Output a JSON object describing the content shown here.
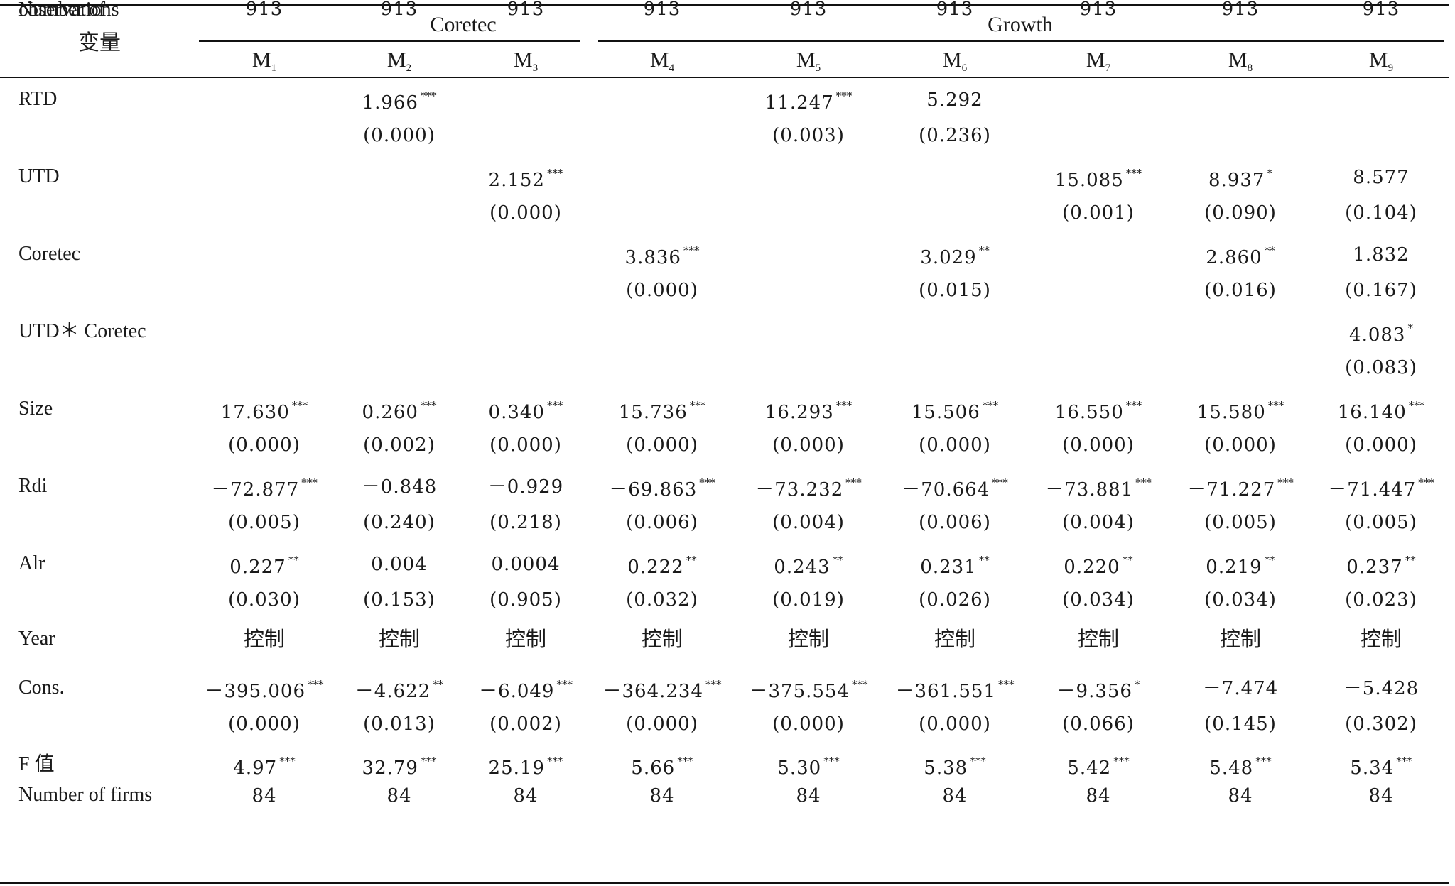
{
  "table": {
    "var_header": "变量",
    "groups": [
      "Coretec",
      "Growth"
    ],
    "models": [
      {
        "main": "M",
        "sub": "1"
      },
      {
        "main": "M",
        "sub": "2"
      },
      {
        "main": "M",
        "sub": "3"
      },
      {
        "main": "M",
        "sub": "4"
      },
      {
        "main": "M",
        "sub": "5"
      },
      {
        "main": "M",
        "sub": "6"
      },
      {
        "main": "M",
        "sub": "7"
      },
      {
        "main": "M",
        "sub": "8"
      },
      {
        "main": "M",
        "sub": "9"
      }
    ],
    "rows": [
      {
        "label": "RTD",
        "type": "pair",
        "coef": [
          "",
          "1.966",
          "",
          "",
          "11.247",
          "5.292",
          "",
          "",
          ""
        ],
        "stars": [
          "",
          "***",
          "",
          "",
          "***",
          "",
          "",
          "",
          ""
        ],
        "p": [
          "",
          "(0.000)",
          "",
          "",
          "(0.003)",
          "(0.236)",
          "",
          "",
          ""
        ]
      },
      {
        "label": "UTD",
        "type": "pair",
        "coef": [
          "",
          "",
          "2.152",
          "",
          "",
          "",
          "15.085",
          "8.937",
          "8.577"
        ],
        "stars": [
          "",
          "",
          "***",
          "",
          "",
          "",
          "***",
          "*",
          ""
        ],
        "p": [
          "",
          "",
          "(0.000)",
          "",
          "",
          "",
          "(0.001)",
          "(0.090)",
          "(0.104)"
        ]
      },
      {
        "label": "Coretec",
        "type": "pair",
        "coef": [
          "",
          "",
          "",
          "3.836",
          "",
          "3.029",
          "",
          "2.860",
          "1.832"
        ],
        "stars": [
          "",
          "",
          "",
          "***",
          "",
          "**",
          "",
          "**",
          ""
        ],
        "p": [
          "",
          "",
          "",
          "(0.000)",
          "",
          "(0.015)",
          "",
          "(0.016)",
          "(0.167)"
        ]
      },
      {
        "label": "UTD＊ Coretec",
        "type": "pair",
        "coef": [
          "",
          "",
          "",
          "",
          "",
          "",
          "",
          "",
          "4.083"
        ],
        "stars": [
          "",
          "",
          "",
          "",
          "",
          "",
          "",
          "",
          "*"
        ],
        "p": [
          "",
          "",
          "",
          "",
          "",
          "",
          "",
          "",
          "(0.083)"
        ]
      },
      {
        "label": "Size",
        "type": "pair",
        "coef": [
          "17.630",
          "0.260",
          "0.340",
          "15.736",
          "16.293",
          "15.506",
          "16.550",
          "15.580",
          "16.140"
        ],
        "stars": [
          "***",
          "***",
          "***",
          "***",
          "***",
          "***",
          "***",
          "***",
          "***"
        ],
        "p": [
          "(0.000)",
          "(0.002)",
          "(0.000)",
          "(0.000)",
          "(0.000)",
          "(0.000)",
          "(0.000)",
          "(0.000)",
          "(0.000)"
        ]
      },
      {
        "label": "Rdi",
        "type": "pair",
        "coef": [
          "－72.877",
          "－0.848",
          "－0.929",
          "－69.863",
          "－73.232",
          "－70.664",
          "－73.881",
          "－71.227",
          "－71.447"
        ],
        "stars": [
          "***",
          "",
          "",
          "***",
          "***",
          "***",
          "***",
          "***",
          "***"
        ],
        "p": [
          "(0.005)",
          "(0.240)",
          "(0.218)",
          "(0.006)",
          "(0.004)",
          "(0.006)",
          "(0.004)",
          "(0.005)",
          "(0.005)"
        ]
      },
      {
        "label": "Alr",
        "type": "pair",
        "coef": [
          "0.227",
          "0.004",
          "0.0004",
          "0.222",
          "0.243",
          "0.231",
          "0.220",
          "0.219",
          "0.237"
        ],
        "stars": [
          "**",
          "",
          "",
          "**",
          "**",
          "**",
          "**",
          "**",
          "**"
        ],
        "p": [
          "(0.030)",
          "(0.153)",
          "(0.905)",
          "(0.032)",
          "(0.019)",
          "(0.026)",
          "(0.034)",
          "(0.034)",
          "(0.023)"
        ]
      },
      {
        "label": "Year",
        "type": "control",
        "values": [
          "控制",
          "控制",
          "控制",
          "控制",
          "控制",
          "控制",
          "控制",
          "控制",
          "控制"
        ]
      },
      {
        "label": "Cons.",
        "type": "pair",
        "coef": [
          "－395.006",
          "－4.622",
          "－6.049",
          "－364.234",
          "－375.554",
          "－361.551",
          "－9.356",
          "－7.474",
          "－5.428"
        ],
        "stars": [
          "***",
          "**",
          "***",
          "***",
          "***",
          "***",
          "*",
          "",
          ""
        ],
        "p": [
          "(0.000)",
          "(0.013)",
          "(0.002)",
          "(0.000)",
          "(0.000)",
          "(0.000)",
          "(0.066)",
          "(0.145)",
          "(0.302)"
        ]
      },
      {
        "label": "F 值",
        "type": "single",
        "coef": [
          "4.97",
          "32.79",
          "25.19",
          "5.66",
          "5.30",
          "5.38",
          "5.42",
          "5.48",
          "5.34"
        ],
        "stars": [
          "***",
          "***",
          "***",
          "***",
          "***",
          "***",
          "***",
          "***",
          "***"
        ]
      },
      {
        "label": "Number of firms",
        "type": "plain",
        "values": [
          "84",
          "84",
          "84",
          "84",
          "84",
          "84",
          "84",
          "84",
          "84"
        ]
      },
      {
        "label": [
          "Number of",
          "observations"
        ],
        "type": "plain2",
        "values": [
          "913",
          "913",
          "913",
          "913",
          "913",
          "913",
          "913",
          "913",
          "913"
        ]
      }
    ]
  }
}
